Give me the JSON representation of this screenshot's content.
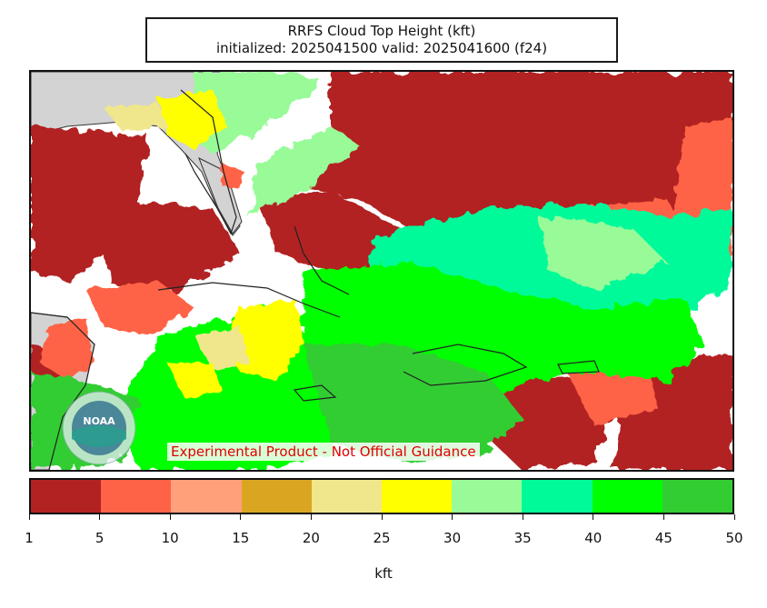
{
  "title": {
    "line1": "RRFS Cloud Top Height (kft)",
    "line2": "initialized: 2025041500 valid: 2025041600 (f24)"
  },
  "map": {
    "disclaimer": "Experimental Product - Not Official Guidance",
    "logo": "NOAA",
    "colors": {
      "land": "#d3d3d3",
      "clear": "#ffffff"
    }
  },
  "colorbar": {
    "unit": "kft",
    "ticks": [
      "1",
      "5",
      "10",
      "15",
      "20",
      "25",
      "30",
      "35",
      "40",
      "45",
      "50"
    ],
    "colors": [
      "#b22222",
      "#ff6347",
      "#ffa07a",
      "#daa520",
      "#f0e68c",
      "#ffff00",
      "#98fb98",
      "#00fa9a",
      "#00ff00",
      "#32cd32"
    ]
  }
}
